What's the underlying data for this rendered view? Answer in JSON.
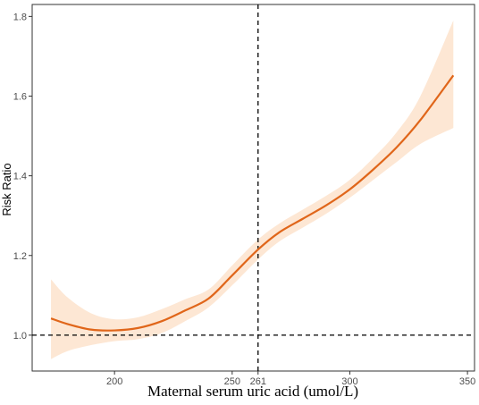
{
  "chart_data": {
    "type": "line",
    "xlabel": "Maternal serum uric acid (umol/L)",
    "ylabel": "Risk Ratio",
    "xlim": [
      165,
      353
    ],
    "ylim": [
      0.91,
      1.83
    ],
    "x_ticks": [
      200,
      250,
      261,
      300,
      350
    ],
    "y_ticks": [
      1.0,
      1.2,
      1.4,
      1.6,
      1.8
    ],
    "y_tick_labels": [
      "1.0",
      "1.2",
      "1.4",
      "1.6",
      "1.8"
    ],
    "reference_lines": {
      "vertical_x": 261,
      "horizontal_y": 1.0
    },
    "grid": false,
    "series": [
      {
        "x": [
          173,
          180,
          190,
          200,
          210,
          220,
          230,
          240,
          250,
          261,
          270,
          280,
          290,
          300,
          310,
          320,
          330,
          344
        ],
        "y": [
          1.042,
          1.028,
          1.014,
          1.012,
          1.018,
          1.035,
          1.062,
          1.092,
          1.15,
          1.215,
          1.258,
          1.292,
          1.326,
          1.366,
          1.416,
          1.472,
          1.54,
          1.652
        ],
        "lower": [
          0.94,
          0.96,
          0.975,
          0.985,
          0.99,
          1.005,
          1.035,
          1.07,
          1.125,
          1.19,
          1.235,
          1.27,
          1.305,
          1.345,
          1.39,
          1.435,
          1.48,
          1.52
        ],
        "upper": [
          1.14,
          1.095,
          1.055,
          1.04,
          1.045,
          1.065,
          1.09,
          1.115,
          1.175,
          1.24,
          1.28,
          1.315,
          1.35,
          1.39,
          1.445,
          1.51,
          1.6,
          1.79
        ]
      }
    ],
    "colors": {
      "line": "#e0661a",
      "band": "#fde7d4",
      "reference": "#000000",
      "axis": "#333333"
    }
  }
}
